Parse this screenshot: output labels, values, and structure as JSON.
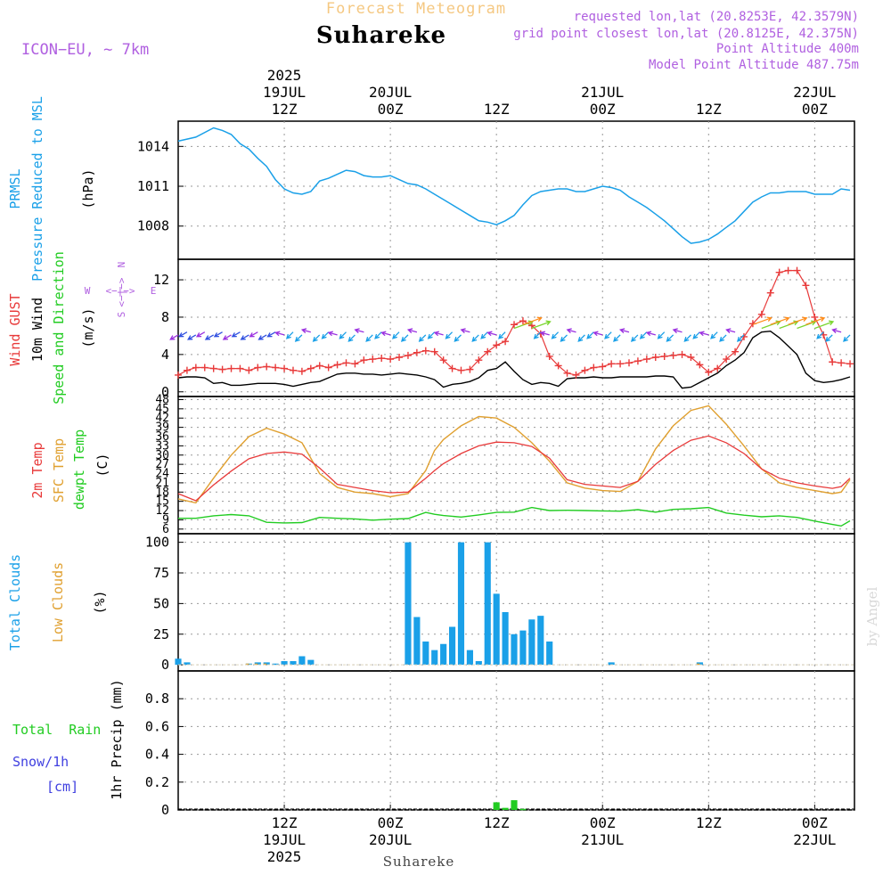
{
  "header": {
    "product": "Forecast Meteogram",
    "location": "Suhareke",
    "model": "ICON−EU, ∼ 7km",
    "requested": "requested lon,lat (20.8253E, 42.3579N)",
    "grid": "grid point closest lon,lat (20.8125E, 42.375N)",
    "point_alt": "Point Altitude 400m",
    "model_alt": "Model Point Altitude 487.75m",
    "footer_location": "Suhareke",
    "credit": "by Angel"
  },
  "time_axis": {
    "top": [
      {
        "h": 12,
        "lines": [
          "2025",
          "19JUL",
          "12Z"
        ]
      },
      {
        "h": 24,
        "lines": [
          "20JUL",
          "00Z"
        ]
      },
      {
        "h": 36,
        "lines": [
          "12Z"
        ]
      },
      {
        "h": 48,
        "lines": [
          "21JUL",
          "00Z"
        ]
      },
      {
        "h": 60,
        "lines": [
          "12Z"
        ]
      },
      {
        "h": 72,
        "lines": [
          "22JUL",
          "00Z"
        ]
      }
    ],
    "bottom": [
      {
        "h": 12,
        "lines": [
          "12Z",
          "19JUL",
          "2025"
        ]
      },
      {
        "h": 24,
        "lines": [
          "00Z",
          "20JUL"
        ]
      },
      {
        "h": 36,
        "lines": [
          "12Z"
        ]
      },
      {
        "h": 48,
        "lines": [
          "00Z",
          "21JUL"
        ]
      },
      {
        "h": 60,
        "lines": [
          "12Z"
        ]
      },
      {
        "h": 72,
        "lines": [
          "00Z",
          "22JUL"
        ]
      }
    ],
    "range_hours": [
      0,
      76.5
    ]
  },
  "colors": {
    "title": "#f5c882",
    "purple": "#b060e0",
    "pressure": "#1aa0e8",
    "gust": "#e83a3a",
    "wind": "#000000",
    "temp2m": "#e83a3a",
    "sfc": "#e0a030",
    "dewpt": "#22cc22",
    "clouds": "#1aa0e8",
    "low": "#e0a030",
    "rain": "#22cc22",
    "snow": "#4040e0",
    "credit": "#d8d8d8"
  },
  "panels": {
    "pressure": {
      "label1": "PRMSL",
      "label2": "Pressure Reduced to MSL",
      "unit": "(hPa)"
    },
    "wind": {
      "label_gust": "Wind GUST",
      "label_wind": "10m Wind",
      "label_dir": "Speed and Direction",
      "unit": "(m/s)",
      "compass_n": "N",
      "compass_s": "S",
      "compass_w": "W",
      "compass_e": "E",
      "compass_ew": "<−|−>",
      "compass_ns": "<−|−>"
    },
    "temp": {
      "label_2m": "2m Temp",
      "label_sfc": "SFC Temp",
      "label_dew": "dewpt Temp",
      "unit": "(C)"
    },
    "clouds": {
      "label_total": "Total Clouds",
      "label_low": "Low Clouds",
      "unit": "(%)"
    },
    "precip": {
      "label_total": "Total  Rain",
      "label_snow": "Snow/1h",
      "label_cm": "[cm]",
      "label_axis": "1hr Precip (mm)"
    }
  },
  "chart_data": [
    {
      "type": "line",
      "title": "PRMSL Pressure Reduced to MSL",
      "ylabel": "hPa",
      "ylim": [
        1005.5,
        1015.9
      ],
      "yticks": [
        1008,
        1011,
        1014
      ],
      "x": [
        0,
        2,
        4,
        5,
        6,
        7,
        8,
        9,
        10,
        11,
        12,
        13,
        14,
        15,
        16,
        17,
        18,
        19,
        20,
        21,
        22,
        23,
        24,
        25,
        26,
        27,
        28,
        29,
        30,
        31,
        32,
        33,
        34,
        35,
        36,
        37,
        38,
        39,
        40,
        41,
        42,
        43,
        44,
        45,
        46,
        47,
        48,
        49,
        50,
        51,
        52,
        53,
        54,
        55,
        56,
        57,
        58,
        59,
        60,
        61,
        62,
        63,
        64,
        65,
        66,
        67,
        68,
        69,
        70,
        71,
        72,
        73,
        74,
        75,
        76
      ],
      "values": [
        1014.4,
        1014.7,
        1015.4,
        1015.2,
        1014.9,
        1014.2,
        1013.8,
        1013.1,
        1012.5,
        1011.5,
        1010.8,
        1010.5,
        1010.4,
        1010.6,
        1011.4,
        1011.6,
        1011.9,
        1012.2,
        1012.1,
        1011.8,
        1011.7,
        1011.7,
        1011.8,
        1011.5,
        1011.2,
        1011.1,
        1010.8,
        1010.4,
        1010.0,
        1009.6,
        1009.2,
        1008.8,
        1008.4,
        1008.3,
        1008.1,
        1008.4,
        1008.8,
        1009.6,
        1010.3,
        1010.6,
        1010.7,
        1010.8,
        1010.8,
        1010.6,
        1010.6,
        1010.8,
        1011.0,
        1010.9,
        1010.7,
        1010.2,
        1009.8,
        1009.4,
        1008.9,
        1008.4,
        1007.8,
        1007.2,
        1006.7,
        1006.8,
        1007.0,
        1007.4,
        1007.9,
        1008.4,
        1009.1,
        1009.8,
        1010.2,
        1010.5,
        1010.5,
        1010.6,
        1010.6,
        1010.6,
        1010.4,
        1010.4,
        1010.4,
        1010.8,
        1010.7
      ]
    },
    {
      "type": "line",
      "title": "Wind GUST / 10m Wind Speed and Direction",
      "ylabel": "m/s",
      "ylim": [
        -0.5,
        14.2
      ],
      "yticks": [
        0,
        4,
        8,
        12
      ],
      "x": [
        0,
        1,
        2,
        3,
        4,
        5,
        6,
        7,
        8,
        9,
        10,
        11,
        12,
        13,
        14,
        15,
        16,
        17,
        18,
        19,
        20,
        21,
        22,
        23,
        24,
        25,
        26,
        27,
        28,
        29,
        30,
        31,
        32,
        33,
        34,
        35,
        36,
        37,
        38,
        39,
        40,
        41,
        42,
        43,
        44,
        45,
        46,
        47,
        48,
        49,
        50,
        51,
        52,
        53,
        54,
        55,
        56,
        57,
        58,
        59,
        60,
        61,
        62,
        63,
        64,
        65,
        66,
        67,
        68,
        69,
        70,
        71,
        72,
        73,
        74,
        75,
        76
      ],
      "series": [
        {
          "name": "Wind GUST",
          "values": [
            1.8,
            2.3,
            2.6,
            2.6,
            2.5,
            2.4,
            2.5,
            2.5,
            2.3,
            2.6,
            2.7,
            2.6,
            2.5,
            2.3,
            2.2,
            2.5,
            2.8,
            2.6,
            2.9,
            3.1,
            3.0,
            3.4,
            3.5,
            3.6,
            3.5,
            3.7,
            3.9,
            4.2,
            4.4,
            4.3,
            3.4,
            2.5,
            2.3,
            2.4,
            3.4,
            4.3,
            5.0,
            5.4,
            7.2,
            7.6,
            7.1,
            6.2,
            3.8,
            2.8,
            2.0,
            1.8,
            2.3,
            2.6,
            2.7,
            3.0,
            3.0,
            3.1,
            3.3,
            3.5,
            3.7,
            3.8,
            3.9,
            4.0,
            3.7,
            2.9,
            2.1,
            2.5,
            3.5,
            4.3,
            5.9,
            7.3,
            8.3,
            10.6,
            12.8,
            13.0,
            13.0,
            11.4,
            8.0,
            6.1,
            3.2,
            3.1,
            3.0
          ]
        },
        {
          "name": "10m Wind",
          "values": [
            1.5,
            1.6,
            1.6,
            1.5,
            0.9,
            1.0,
            0.7,
            0.7,
            0.8,
            0.9,
            0.9,
            0.9,
            0.8,
            0.6,
            0.8,
            1.0,
            1.1,
            1.5,
            1.9,
            2.0,
            2.0,
            1.9,
            1.9,
            1.8,
            1.9,
            2.0,
            1.9,
            1.8,
            1.6,
            1.3,
            0.5,
            0.8,
            0.9,
            1.1,
            1.5,
            2.3,
            2.5,
            3.2,
            2.2,
            1.3,
            0.8,
            1.0,
            0.9,
            0.6,
            1.4,
            1.5,
            1.5,
            1.6,
            1.5,
            1.5,
            1.6,
            1.6,
            1.6,
            1.6,
            1.7,
            1.7,
            1.6,
            0.4,
            0.5,
            1.0,
            1.5,
            2.0,
            2.8,
            3.4,
            4.2,
            5.8,
            6.4,
            6.5,
            5.8,
            4.9,
            4.0,
            2.0,
            1.2,
            1.0,
            1.1,
            1.3,
            1.6
          ]
        }
      ]
    },
    {
      "type": "line",
      "title": "2m Temp / SFC Temp / dewpt Temp",
      "ylabel": "C",
      "ylim": [
        4.5,
        49
      ],
      "yticks": [
        6,
        9,
        12,
        15,
        18,
        21,
        24,
        27,
        30,
        33,
        36,
        39,
        42,
        45,
        48
      ],
      "x": [
        0,
        2,
        4,
        6,
        8,
        10,
        12,
        14,
        16,
        18,
        20,
        22,
        24,
        26,
        28,
        29,
        30,
        32,
        34,
        36,
        38,
        40,
        42,
        44,
        46,
        48,
        50,
        52,
        54,
        56,
        58,
        60,
        62,
        64,
        66,
        68,
        70,
        72,
        74,
        75,
        76
      ],
      "series": [
        {
          "name": "2m Temp",
          "values": [
            17.5,
            15.2,
            20.3,
            24.8,
            28.8,
            30.5,
            31.0,
            30.3,
            25.8,
            20.5,
            19.5,
            18.5,
            17.8,
            18.0,
            22.5,
            25.0,
            27.2,
            30.5,
            33.0,
            34.2,
            34.0,
            32.8,
            29.0,
            22.0,
            20.5,
            20.0,
            19.5,
            21.5,
            27.0,
            31.5,
            34.8,
            36.2,
            34.0,
            30.5,
            25.5,
            22.5,
            21.0,
            20.0,
            19.2,
            19.8,
            22.5
          ]
        },
        {
          "name": "SFC Temp",
          "values": [
            15.8,
            14.5,
            22.5,
            30.0,
            36.0,
            38.7,
            36.8,
            34.0,
            24.0,
            19.5,
            18.0,
            17.5,
            16.5,
            17.5,
            25.0,
            31.5,
            35.0,
            39.5,
            42.5,
            42.0,
            39.0,
            34.0,
            28.0,
            21.0,
            19.3,
            18.5,
            18.2,
            21.5,
            32.0,
            39.5,
            44.5,
            46.0,
            40.0,
            33.0,
            25.5,
            21.0,
            19.5,
            18.5,
            17.5,
            18.0,
            22.0
          ]
        },
        {
          "name": "dewpt Temp",
          "values": [
            9.5,
            9.5,
            10.3,
            10.7,
            10.3,
            8.2,
            8.0,
            8.1,
            9.8,
            9.5,
            9.3,
            8.9,
            9.2,
            9.4,
            11.4,
            10.8,
            10.4,
            9.9,
            10.6,
            11.4,
            11.5,
            13.0,
            12.0,
            12.1,
            12.0,
            11.9,
            11.8,
            12.3,
            11.5,
            12.4,
            12.6,
            13.0,
            11.2,
            10.5,
            10.0,
            10.3,
            9.8,
            8.6,
            7.5,
            7.0,
            8.7
          ]
        }
      ]
    },
    {
      "type": "bar",
      "title": "Total Clouds / Low Clouds",
      "ylabel": "%",
      "ylim": [
        -5,
        107
      ],
      "yticks": [
        0,
        25,
        50,
        75,
        100
      ],
      "x": [
        0,
        1,
        2,
        3,
        4,
        5,
        6,
        7,
        8,
        9,
        10,
        11,
        12,
        13,
        14,
        15,
        16,
        17,
        18,
        19,
        20,
        21,
        22,
        23,
        24,
        25,
        26,
        27,
        28,
        29,
        30,
        31,
        32,
        33,
        34,
        35,
        36,
        37,
        38,
        39,
        40,
        41,
        42,
        43,
        44,
        45,
        46,
        47,
        48,
        49,
        50,
        51,
        52,
        53,
        54,
        55,
        56,
        57,
        58,
        59,
        60,
        61,
        62,
        63,
        64,
        65,
        66,
        67,
        68,
        69,
        70,
        71,
        72,
        73,
        74,
        75,
        76
      ],
      "series": [
        {
          "name": "Total Clouds",
          "values": [
            5,
            2,
            0,
            0,
            0,
            0,
            0,
            0,
            1,
            2,
            2,
            1,
            3,
            3,
            7,
            4,
            0,
            0,
            0,
            0,
            0,
            0,
            0,
            0,
            0,
            0,
            100,
            39,
            19,
            12,
            17,
            31,
            100,
            12,
            3,
            100,
            58,
            43,
            25,
            28,
            37,
            40,
            19,
            0,
            0,
            0,
            0,
            0,
            0,
            2,
            0,
            0,
            0,
            0,
            0,
            0,
            0,
            0,
            0,
            2,
            0,
            0,
            0,
            0,
            0,
            0,
            0,
            0,
            0,
            0,
            0,
            0,
            0,
            0,
            0,
            0,
            0
          ]
        },
        {
          "name": "Low Clouds",
          "values": [
            0,
            0,
            0,
            0,
            0,
            0,
            0,
            0,
            1,
            1,
            1,
            0,
            0,
            0,
            0,
            0,
            0,
            0,
            0,
            0,
            0,
            0,
            0,
            0,
            0,
            0,
            0,
            0,
            0,
            0,
            0,
            0,
            0,
            0,
            0,
            0,
            0,
            0,
            0,
            0,
            0,
            0,
            0,
            0,
            0,
            0,
            0,
            0,
            0,
            0,
            0,
            0,
            0,
            0,
            0,
            0,
            0,
            0,
            0,
            1,
            0,
            0,
            0,
            0,
            0,
            0,
            0,
            0,
            0,
            0,
            0,
            0,
            0,
            0,
            0,
            0,
            0
          ]
        }
      ]
    },
    {
      "type": "bar",
      "title": "Total Rain / Snow/1h",
      "ylabel": "1hr Precip (mm)",
      "ylim": [
        0,
        1.0
      ],
      "yticks": [
        0,
        0.2,
        0.4,
        0.6,
        0.8
      ],
      "x": [
        36,
        37,
        38,
        39
      ],
      "series": [
        {
          "name": "Total Rain",
          "values": [
            0.055,
            0.015,
            0.07,
            0.008
          ]
        }
      ]
    }
  ]
}
